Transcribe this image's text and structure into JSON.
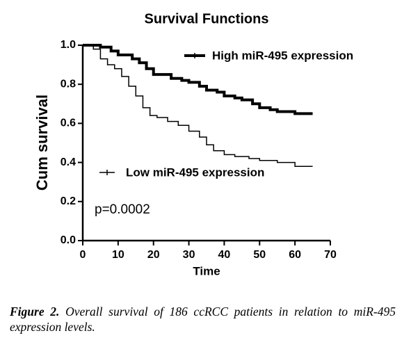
{
  "chart_data": {
    "type": "line",
    "drawstyle": "steps-post",
    "title": "Survival Functions",
    "xlabel": "Time",
    "ylabel": "Cum survival",
    "annotation": "p=0.0002",
    "xlim": [
      0,
      70
    ],
    "xticks": [
      0,
      10,
      20,
      30,
      40,
      50,
      60,
      70
    ],
    "ylim": [
      0,
      1
    ],
    "yticks": [
      {
        "value": 0,
        "label": "0.0"
      },
      0.2,
      0.4,
      0.6,
      0.8,
      {
        "value": 1,
        "label": "1.0"
      }
    ],
    "series": [
      {
        "name": "High miR-495 expression",
        "color": "#000000",
        "linewidth": 4,
        "x": [
          0,
          5,
          8,
          10,
          14,
          16,
          18,
          20,
          25,
          28,
          30,
          33,
          35,
          38,
          40,
          43,
          45,
          48,
          50,
          53,
          55,
          60,
          65
        ],
        "values": [
          1.0,
          0.99,
          0.97,
          0.95,
          0.93,
          0.91,
          0.88,
          0.85,
          0.83,
          0.82,
          0.81,
          0.79,
          0.77,
          0.76,
          0.74,
          0.73,
          0.72,
          0.7,
          0.68,
          0.67,
          0.66,
          0.65,
          0.65
        ]
      },
      {
        "name": "Low miR-495 expression",
        "color": "#000000",
        "linewidth": 1.5,
        "x": [
          0,
          3,
          5,
          7,
          9,
          11,
          13,
          15,
          17,
          19,
          21,
          24,
          27,
          30,
          33,
          35,
          37,
          40,
          43,
          47,
          50,
          55,
          60,
          65
        ],
        "values": [
          1.0,
          0.98,
          0.93,
          0.9,
          0.88,
          0.84,
          0.79,
          0.74,
          0.68,
          0.64,
          0.63,
          0.61,
          0.59,
          0.56,
          0.53,
          0.49,
          0.46,
          0.44,
          0.43,
          0.42,
          0.41,
          0.4,
          0.38,
          0.38
        ]
      }
    ]
  },
  "caption": {
    "label": "Figure 2.",
    "text": "Overall survival of 186 ccRCC patients in relation to miR-495 expression levels."
  }
}
